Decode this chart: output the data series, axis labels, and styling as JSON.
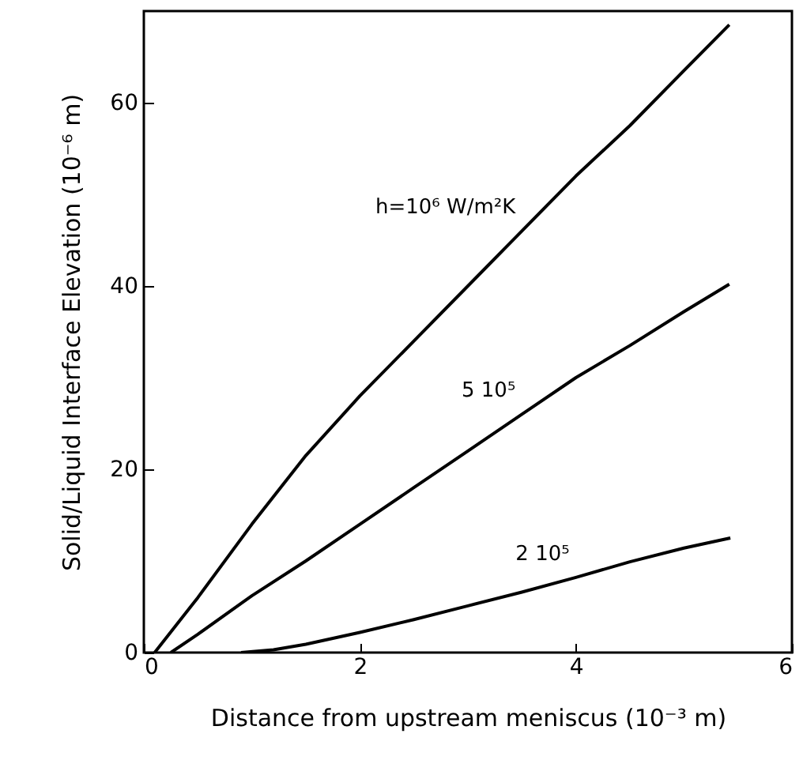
{
  "chart_data": {
    "type": "line",
    "xlabel": "Distance from upstream meniscus (10⁻³ m)",
    "ylabel": "Solid/Liquid Interface Elevation (10⁻⁶ m)",
    "xlim": [
      0,
      6
    ],
    "xticks": [
      0,
      2,
      4,
      6
    ],
    "ylim": [
      0,
      70
    ],
    "yticks": [
      0,
      20,
      40,
      60
    ],
    "grid": false,
    "marker": "none",
    "line_style": "solid",
    "series": [
      {
        "name": "h=10⁶ W/m²K",
        "color": "#000000",
        "x": [
          0.1,
          0.5,
          1,
          1.5,
          2,
          2.5,
          3,
          3.5,
          4,
          4.5,
          5,
          5.42
        ],
        "values": [
          0,
          6,
          14,
          21.5,
          28,
          34,
          40,
          46,
          52,
          57.5,
          63.5,
          68.5
        ]
      },
      {
        "name": "5 10⁵",
        "color": "#000000",
        "x": [
          0.25,
          0.5,
          1,
          1.5,
          2,
          2.5,
          3,
          3.5,
          4,
          4.5,
          5,
          5.42
        ],
        "values": [
          0,
          2,
          6.2,
          10,
          14,
          18,
          22,
          26,
          30,
          33.5,
          37.2,
          40.2
        ]
      },
      {
        "name": "2 10⁵",
        "color": "#000000",
        "x": [
          0.9,
          1.2,
          1.5,
          2,
          2.5,
          3,
          3.5,
          4,
          4.5,
          5,
          5.43
        ],
        "values": [
          0,
          0.3,
          0.9,
          2.2,
          3.6,
          5.1,
          6.6,
          8.2,
          9.9,
          11.4,
          12.5
        ]
      }
    ]
  }
}
